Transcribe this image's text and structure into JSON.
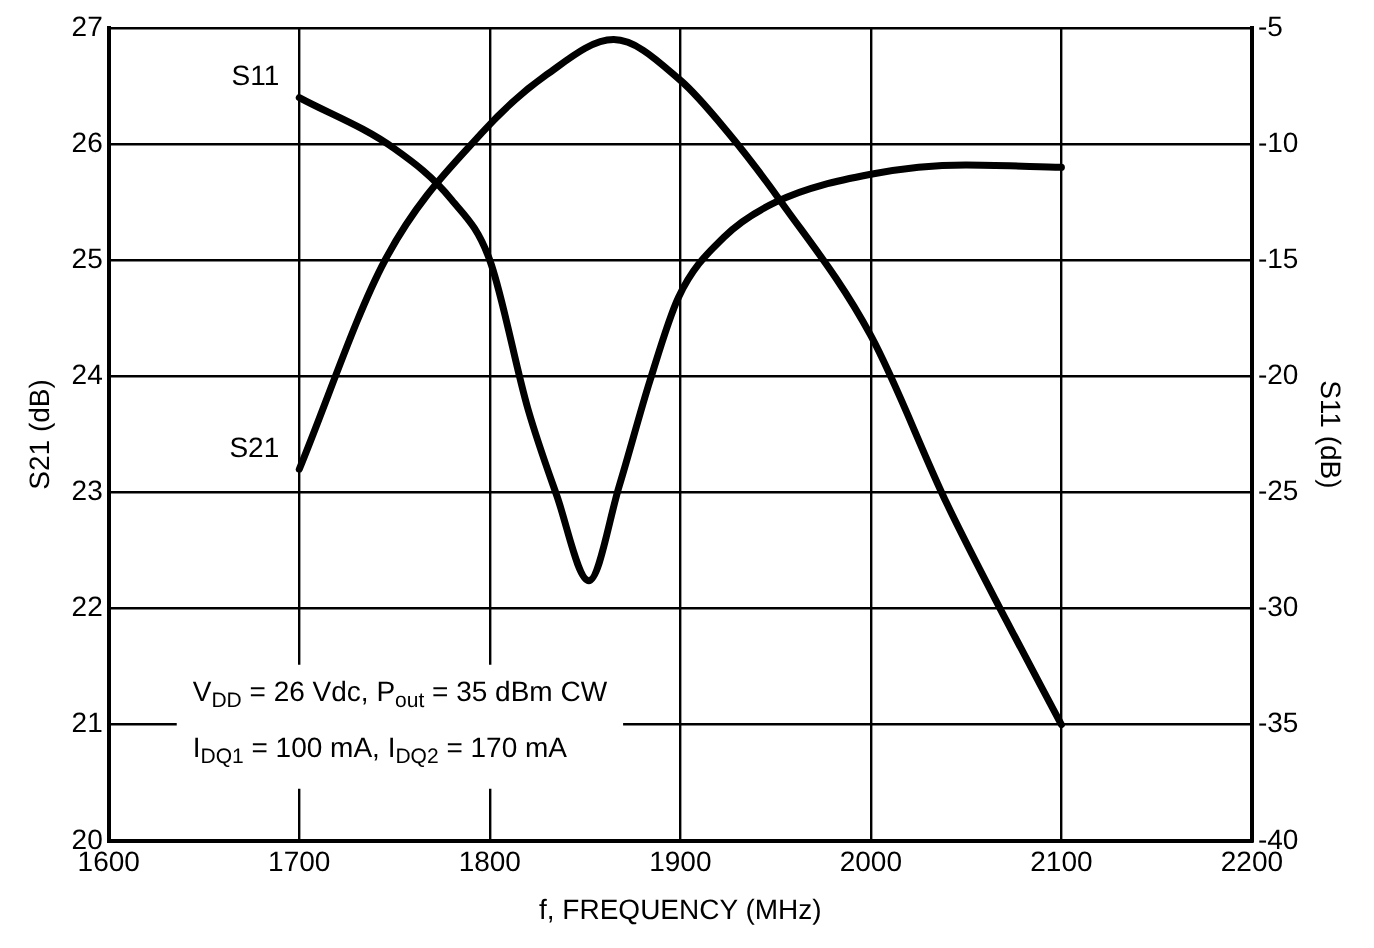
{
  "chart_data": {
    "type": "line",
    "xlabel": "f, FREQUENCY (MHz)",
    "ylabel": "S21 (dB)",
    "y2label": "S11 (dB)",
    "annotations": [
      "V$_{DD}$ = 26 Vdc, P$_{out}$ = 35 dBm CW",
      "I$_{DQ1}$ = 100 mA, I$_{DQ2}$ = 170 mA"
    ],
    "series": [
      {
        "name": "S21",
        "color": "#000000",
        "x": [
          1700,
          1745,
          1796,
          1830,
          1865,
          1900,
          1925,
          1953,
          2000,
          2040,
          2071,
          2100
        ],
        "values": [
          23.2,
          25.0,
          26.1,
          26.6,
          26.9,
          26.55,
          26.1,
          25.5,
          24.35,
          22.9,
          21.9,
          21.0
        ]
      },
      {
        "name": "S11",
        "color": "#000000",
        "axis": "y2",
        "x": [
          1700,
          1750,
          1780,
          1800,
          1820,
          1835,
          1852,
          1868,
          1884,
          1899,
          1923,
          1950,
          2000,
          2050,
          2100
        ],
        "values": [
          -8.0,
          -10.2,
          -12.4,
          -15.0,
          -21.4,
          -25.1,
          -28.8,
          -24.7,
          -20.2,
          -16.6,
          -14.0,
          -12.5,
          -11.3,
          -10.9,
          -11.0
        ]
      }
    ],
    "xlim": [
      1600,
      2200
    ],
    "xticks": [
      1600,
      1700,
      1800,
      1900,
      2000,
      2100,
      2200
    ],
    "ylim": [
      20,
      27
    ],
    "yticks": [
      20,
      21,
      22,
      23,
      24,
      25,
      26,
      27
    ],
    "y2lim": [
      -40,
      -5
    ],
    "y2ticks": [
      -40,
      -35,
      -30,
      -25,
      -20,
      -15,
      -10,
      -5
    ],
    "grid": true,
    "legend": false,
    "marker": "none",
    "line_style": "solid"
  }
}
